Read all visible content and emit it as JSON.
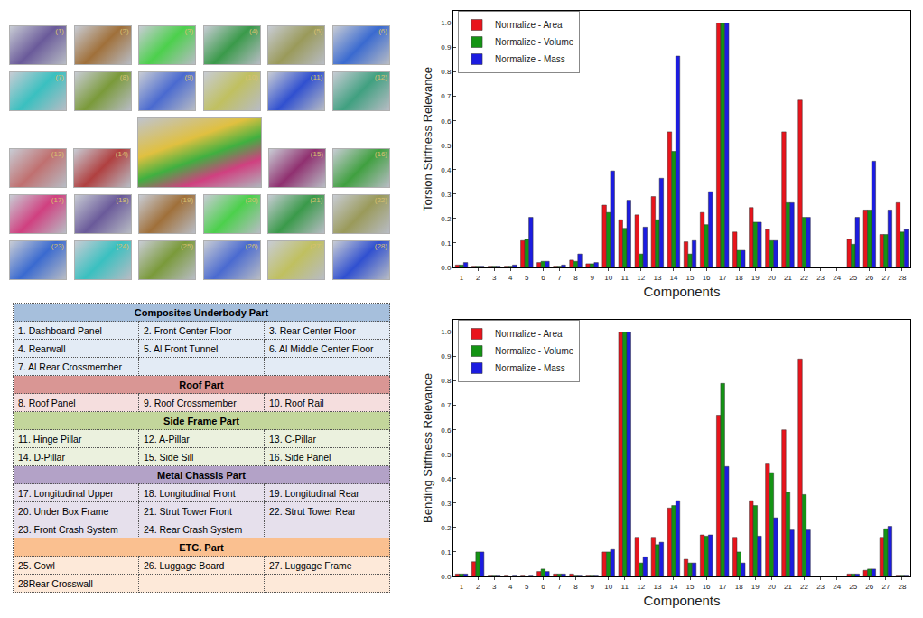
{
  "chart_data": [
    {
      "type": "bar",
      "x_label": "Components",
      "y_label": "Torsion Stiffness Relevance",
      "x": [
        1,
        2,
        3,
        4,
        5,
        6,
        7,
        8,
        9,
        10,
        11,
        12,
        13,
        14,
        15,
        16,
        17,
        18,
        19,
        20,
        21,
        22,
        23,
        24,
        25,
        26,
        27,
        28
      ],
      "xlim": [
        0.5,
        28.5
      ],
      "xticks": [
        1,
        2,
        3,
        4,
        5,
        6,
        7,
        8,
        9,
        10,
        11,
        12,
        13,
        14,
        15,
        16,
        17,
        18,
        19,
        20,
        21,
        22,
        23,
        24,
        25,
        26,
        27,
        28
      ],
      "ylim": [
        0,
        1.05
      ],
      "yticks": [
        {
          "value": 0,
          "label": "0.0"
        },
        0.1,
        0.2,
        0.3,
        0.4,
        0.5,
        0.6,
        0.7,
        0.8,
        0.9,
        {
          "value": 1,
          "label": "1.0"
        }
      ],
      "grid": false,
      "legend": "top-left",
      "series": [
        {
          "name": "Normalize - Area",
          "color": "#e8141c",
          "values": [
            0.01,
            0.005,
            0.005,
            0.005,
            0.11,
            0.02,
            0.005,
            0.03,
            0.015,
            0.255,
            0.195,
            0.215,
            0.29,
            0.555,
            0.105,
            0.225,
            1.0,
            0.145,
            0.245,
            0.155,
            0.555,
            0.685,
            0,
            0,
            0.115,
            0.235,
            0.135,
            0.265
          ]
        },
        {
          "name": "Normalize - Volume",
          "color": "#149414",
          "values": [
            0.01,
            0.005,
            0.005,
            0.005,
            0.115,
            0.025,
            0.005,
            0.025,
            0.015,
            0.225,
            0.16,
            0.055,
            0.195,
            0.475,
            0.055,
            0.175,
            1.0,
            0.07,
            0.185,
            0.11,
            0.265,
            0.205,
            0,
            0,
            0.095,
            0.235,
            0.135,
            0.145
          ]
        },
        {
          "name": "Normalize - Mass",
          "color": "#1c1ce0",
          "values": [
            0.02,
            0.005,
            0.005,
            0.01,
            0.205,
            0.025,
            0.01,
            0.055,
            0.02,
            0.395,
            0.275,
            0.165,
            0.365,
            0.865,
            0.11,
            0.31,
            1.0,
            0.07,
            0.185,
            0.11,
            0.265,
            0.205,
            0,
            0,
            0.205,
            0.435,
            0.235,
            0.155
          ]
        }
      ]
    },
    {
      "type": "bar",
      "x_label": "Components",
      "y_label": "Bending Stiffness Relevance",
      "x": [
        1,
        2,
        3,
        4,
        5,
        6,
        7,
        8,
        9,
        10,
        11,
        12,
        13,
        14,
        15,
        16,
        17,
        18,
        19,
        20,
        21,
        22,
        23,
        24,
        25,
        26,
        27,
        28
      ],
      "xlim": [
        0.5,
        28.5
      ],
      "xticks": [
        1,
        2,
        3,
        4,
        5,
        6,
        7,
        8,
        9,
        10,
        11,
        12,
        13,
        14,
        15,
        16,
        17,
        18,
        19,
        20,
        21,
        22,
        23,
        24,
        25,
        26,
        27,
        28
      ],
      "ylim": [
        0,
        1.05
      ],
      "yticks": [
        {
          "value": 0,
          "label": "0.0"
        },
        0.1,
        0.2,
        0.3,
        0.4,
        0.5,
        0.6,
        0.7,
        0.8,
        0.9,
        {
          "value": 1,
          "label": "1.0"
        }
      ],
      "grid": false,
      "legend": "top-left",
      "series": [
        {
          "name": "Normalize - Area",
          "color": "#e8141c",
          "values": [
            0.01,
            0.06,
            0.005,
            0.005,
            0.005,
            0.02,
            0.01,
            0.01,
            0.005,
            0.1,
            1.0,
            0.16,
            0.16,
            0.28,
            0.07,
            0.17,
            0.66,
            0.16,
            0.31,
            0.46,
            0.6,
            0.89,
            0,
            0,
            0.01,
            0.025,
            0.16,
            0.005
          ]
        },
        {
          "name": "Normalize - Volume",
          "color": "#149414",
          "values": [
            0.01,
            0.1,
            0.005,
            0,
            0,
            0.03,
            0.01,
            0.005,
            0.005,
            0.1,
            1.0,
            0.055,
            0.13,
            0.29,
            0.055,
            0.165,
            0.79,
            0.1,
            0.29,
            0.425,
            0.345,
            0.335,
            0,
            0,
            0.01,
            0.03,
            0.195,
            0.005
          ]
        },
        {
          "name": "Normalize - Mass",
          "color": "#1c1ce0",
          "values": [
            0.01,
            0.1,
            0.005,
            0.005,
            0.005,
            0.02,
            0.01,
            0.005,
            0.005,
            0.11,
            1.0,
            0.08,
            0.14,
            0.31,
            0.055,
            0.17,
            0.45,
            0.055,
            0.165,
            0.24,
            0.19,
            0.19,
            0,
            0,
            0.01,
            0.03,
            0.205,
            0.005
          ]
        }
      ]
    }
  ],
  "thumbnails": [
    [
      "(1)",
      "(2)",
      "(3)",
      "(4)",
      "(5)",
      "(6)"
    ],
    [
      "(7)",
      "(8)",
      "(9)",
      "(10)",
      "(11)",
      "(12)"
    ],
    [
      "(13)",
      "(14)",
      null,
      "(15)",
      "(16)"
    ],
    [
      "(17)",
      "(18)",
      "(19)",
      "(20)",
      "(21)",
      "(22)"
    ],
    [
      "(23)",
      "(24)",
      "(25)",
      "(26)",
      "(27)",
      "(28)"
    ]
  ],
  "table": {
    "sections": [
      {
        "title": "Composites Underbody Part",
        "items": [
          "1. Dashboard Panel",
          "2. Front Center Floor",
          "3. Rear Center Floor",
          "4. Rearwall",
          "5. Al Front Tunnel",
          "6. Al Middle Center Floor",
          "7. Al Rear Crossmember"
        ]
      },
      {
        "title": "Roof Part",
        "items": [
          "8. Roof Panel",
          "9. Roof Crossmember",
          "10. Roof Rail"
        ]
      },
      {
        "title": "Side Frame Part",
        "items": [
          "11. Hinge Pillar",
          "12. A-Pillar",
          "13. C-Pillar",
          "14. D-Pillar",
          "15. Side Sill",
          "16. Side Panel"
        ]
      },
      {
        "title": "Metal Chassis Part",
        "items": [
          "17. Longitudinal Upper",
          "18. Longitudinal Front",
          "19. Longitudinal Rear",
          "20. Under Box Frame",
          "21. Strut Tower Front",
          "22. Strut Tower Rear",
          "23. Front Crash System",
          "24. Rear Crash System"
        ]
      },
      {
        "title": "ETC. Part",
        "items": [
          "25. Cowl",
          "26. Luggage Board",
          "27. Luggage Frame",
          "28Rear Crosswall"
        ]
      }
    ]
  }
}
